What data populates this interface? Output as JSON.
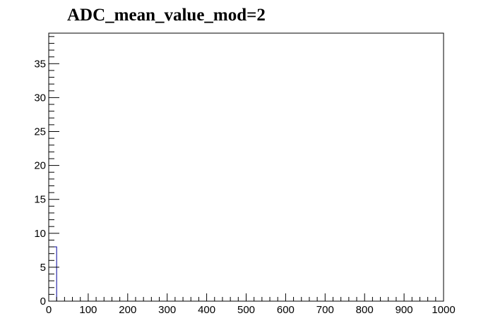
{
  "chart_data": {
    "type": "histogram",
    "title": "ADC_mean_value_mod=2",
    "xlabel": "",
    "ylabel": "",
    "xlim": [
      0,
      1000
    ],
    "ylim": [
      0,
      39.5
    ],
    "x_ticks": [
      0,
      100,
      200,
      300,
      400,
      500,
      600,
      700,
      800,
      900,
      1000
    ],
    "y_ticks": [
      0,
      5,
      10,
      15,
      20,
      25,
      30,
      35
    ],
    "bins": [
      {
        "x0": 0,
        "x1": 20,
        "value": 8
      }
    ],
    "line_color": "#000099",
    "grid": false,
    "legend": "none"
  }
}
